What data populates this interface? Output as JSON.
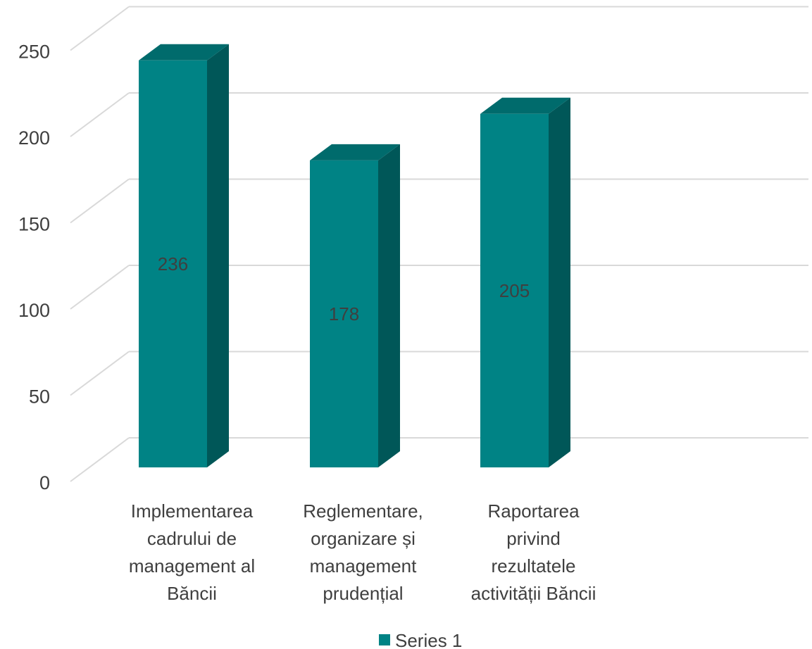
{
  "chart_data": {
    "type": "bar",
    "style": "3d-column",
    "categories": [
      [
        "Implementarea",
        "cadrului de",
        "management al",
        "Băncii"
      ],
      [
        "Reglementare,",
        "organizare și",
        "management",
        "prudențial"
      ],
      [
        "Raportarea",
        "privind",
        "rezultatele",
        "activității Băncii"
      ]
    ],
    "series": [
      {
        "name": "Series 1",
        "values": [
          236,
          178,
          205
        ]
      }
    ],
    "data_labels": [
      "236",
      "178",
      "205"
    ],
    "y_ticks": [
      0,
      50,
      100,
      150,
      200,
      250
    ],
    "ylim": [
      0,
      275
    ],
    "grid": true,
    "legend_position": "bottom",
    "colors": {
      "bar_front": "#008385",
      "bar_top": "#006b6c",
      "bar_side": "#005758",
      "grid": "#d9d9d9",
      "text": "#3f3f3f"
    }
  },
  "legend": {
    "label": "Series 1"
  }
}
